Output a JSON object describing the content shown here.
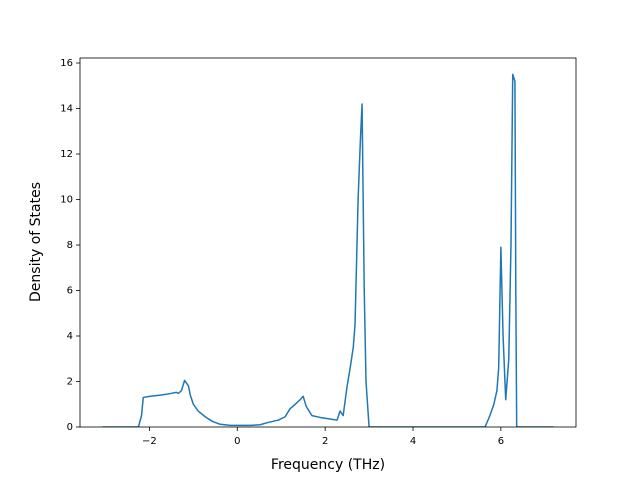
{
  "chart_data": {
    "type": "line",
    "x_label": "Frequency (THz)",
    "y_label": "Density of States",
    "xlim": [
      -3.58,
      7.71
    ],
    "ylim": [
      0,
      16.22
    ],
    "xticks": [
      {
        "value": -2,
        "label": "−2"
      },
      0,
      2,
      4,
      6
    ],
    "yticks": [
      0,
      2,
      4,
      6,
      8,
      10,
      12,
      14,
      16
    ],
    "series": [
      {
        "color": "#1f77b4",
        "x": [
          -3.07,
          -2.25,
          -2.18,
          -2.14,
          -1.98,
          -1.75,
          -1.52,
          -1.39,
          -1.34,
          -1.27,
          -1.2,
          -1.11,
          -1.07,
          -1.0,
          -0.89,
          -0.73,
          -0.57,
          -0.39,
          -0.16,
          0.3,
          0.52,
          0.7,
          0.93,
          1.09,
          1.2,
          1.32,
          1.43,
          1.5,
          1.57,
          1.7,
          1.89,
          2.11,
          2.27,
          2.34,
          2.41,
          2.5,
          2.57,
          2.64,
          2.68,
          2.75,
          2.8,
          2.84,
          2.89,
          2.93,
          3.0,
          5.64,
          5.75,
          5.84,
          5.91,
          5.95,
          6.0,
          6.05,
          6.11,
          6.18,
          6.23,
          6.27,
          6.32,
          6.34,
          6.36,
          7.2
        ],
        "values": [
          0,
          0,
          0.5,
          1.3,
          1.35,
          1.4,
          1.47,
          1.52,
          1.48,
          1.6,
          2.05,
          1.8,
          1.4,
          1.0,
          0.7,
          0.45,
          0.25,
          0.12,
          0.07,
          0.07,
          0.1,
          0.2,
          0.3,
          0.45,
          0.8,
          1.0,
          1.2,
          1.35,
          0.9,
          0.5,
          0.42,
          0.35,
          0.3,
          0.7,
          0.5,
          1.8,
          2.6,
          3.5,
          4.5,
          10,
          12.5,
          14.2,
          6,
          2,
          0,
          0,
          0.5,
          1.0,
          1.6,
          2.6,
          7.9,
          4,
          1.2,
          3,
          8,
          15.5,
          15.2,
          6,
          0,
          0
        ]
      }
    ]
  }
}
